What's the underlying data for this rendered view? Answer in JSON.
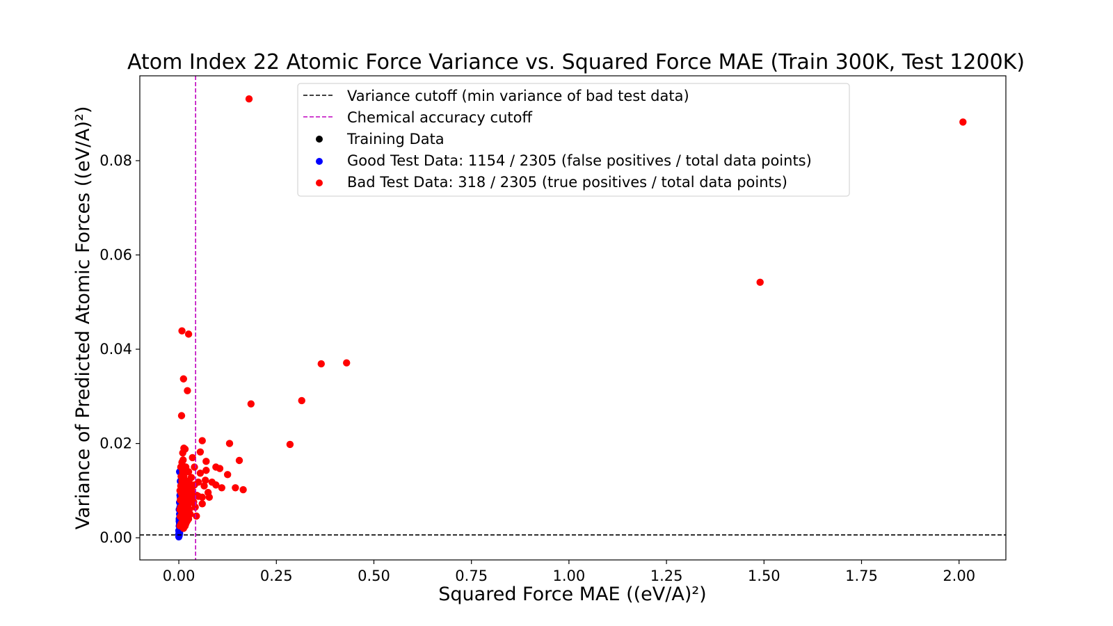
{
  "chart_data": {
    "type": "scatter",
    "title": "Atom Index 22 Atomic Force Variance vs. Squared Force MAE (Train 300K, Test 1200K)",
    "xlabel": "Squared Force MAE ((eV/A)²)",
    "ylabel": "Variance of Predicted Atomic Forces ((eV/A)²)",
    "xlim": [
      -0.1,
      2.12
    ],
    "ylim": [
      -0.0047,
      0.098
    ],
    "xticks": [
      0.0,
      0.25,
      0.5,
      0.75,
      1.0,
      1.25,
      1.5,
      1.75,
      2.0
    ],
    "xtick_labels": [
      "0.00",
      "0.25",
      "0.50",
      "0.75",
      "1.00",
      "1.25",
      "1.50",
      "1.75",
      "2.00"
    ],
    "yticks": [
      0.0,
      0.02,
      0.04,
      0.06,
      0.08
    ],
    "ytick_labels": [
      "0.00",
      "0.02",
      "0.04",
      "0.06",
      "0.08"
    ],
    "grid": false,
    "legend_position": "top-center",
    "reference_lines": [
      {
        "orientation": "horizontal",
        "value": 0.0006,
        "label": "Variance cutoff (min variance of bad test data)",
        "color": "#000000",
        "style": "dashed"
      },
      {
        "orientation": "vertical",
        "value": 0.043,
        "label": "Chemical accuracy cutoff",
        "color": "#bf00bf",
        "style": "dashed"
      }
    ],
    "series": [
      {
        "name": "Training Data",
        "color": "#000000",
        "points": []
      },
      {
        "name": "Good Test Data: 1154 / 2305 (false positives / total data points)",
        "color": "#0000ff",
        "points": [
          [
            0.0,
            0.0002
          ],
          [
            0.001,
            0.0005
          ],
          [
            0.002,
            0.001
          ],
          [
            0.0,
            0.0015
          ],
          [
            0.003,
            0.002
          ],
          [
            0.001,
            0.0025
          ],
          [
            0.002,
            0.003
          ],
          [
            0.004,
            0.0035
          ],
          [
            0.001,
            0.004
          ],
          [
            0.003,
            0.0045
          ],
          [
            0.002,
            0.005
          ],
          [
            0.004,
            0.0055
          ],
          [
            0.001,
            0.006
          ],
          [
            0.003,
            0.0065
          ],
          [
            0.005,
            0.007
          ],
          [
            0.002,
            0.0075
          ],
          [
            0.006,
            0.008
          ],
          [
            0.004,
            0.0085
          ],
          [
            0.003,
            0.009
          ],
          [
            0.007,
            0.0095
          ],
          [
            0.005,
            0.01
          ],
          [
            0.008,
            0.011
          ],
          [
            0.004,
            0.012
          ],
          [
            0.006,
            0.013
          ],
          [
            0.002,
            0.014
          ],
          [
            0.001,
            0.0035
          ],
          [
            0.005,
            0.0045
          ],
          [
            0.0,
            0.0008
          ],
          [
            0.006,
            0.006
          ]
        ]
      },
      {
        "name": "Bad Test Data: 318 / 2305 (true positives / total data points)",
        "color": "#ff0000",
        "points": [
          [
            2.01,
            0.0882
          ],
          [
            1.49,
            0.0542
          ],
          [
            0.18,
            0.0931
          ],
          [
            0.008,
            0.0439
          ],
          [
            0.025,
            0.0432
          ],
          [
            0.43,
            0.0371
          ],
          [
            0.365,
            0.0369
          ],
          [
            0.012,
            0.0337
          ],
          [
            0.022,
            0.0312
          ],
          [
            0.315,
            0.0291
          ],
          [
            0.185,
            0.0284
          ],
          [
            0.007,
            0.0259
          ],
          [
            0.285,
            0.0198
          ],
          [
            0.13,
            0.02
          ],
          [
            0.06,
            0.0206
          ],
          [
            0.155,
            0.0164
          ],
          [
            0.165,
            0.0102
          ],
          [
            0.145,
            0.0106
          ],
          [
            0.125,
            0.0134
          ],
          [
            0.11,
            0.0106
          ],
          [
            0.105,
            0.0147
          ],
          [
            0.095,
            0.015
          ],
          [
            0.095,
            0.0112
          ],
          [
            0.085,
            0.0118
          ],
          [
            0.075,
            0.0096
          ],
          [
            0.078,
            0.0086
          ],
          [
            0.07,
            0.0162
          ],
          [
            0.07,
            0.0143
          ],
          [
            0.068,
            0.0122
          ],
          [
            0.065,
            0.011
          ],
          [
            0.06,
            0.0086
          ],
          [
            0.06,
            0.0072
          ],
          [
            0.055,
            0.0137
          ],
          [
            0.055,
            0.0182
          ],
          [
            0.05,
            0.0118
          ],
          [
            0.045,
            0.0046
          ],
          [
            0.04,
            0.015
          ],
          [
            0.04,
            0.0112
          ],
          [
            0.035,
            0.017
          ],
          [
            0.035,
            0.0095
          ],
          [
            0.038,
            0.0076
          ],
          [
            0.032,
            0.0128
          ],
          [
            0.03,
            0.011
          ],
          [
            0.028,
            0.0086
          ],
          [
            0.027,
            0.006
          ],
          [
            0.025,
            0.014
          ],
          [
            0.025,
            0.004
          ],
          [
            0.022,
            0.012
          ],
          [
            0.022,
            0.008
          ],
          [
            0.02,
            0.01
          ],
          [
            0.02,
            0.006
          ],
          [
            0.018,
            0.015
          ],
          [
            0.018,
            0.003
          ],
          [
            0.016,
            0.0188
          ],
          [
            0.015,
            0.011
          ],
          [
            0.015,
            0.007
          ],
          [
            0.014,
            0.005
          ],
          [
            0.013,
            0.013
          ],
          [
            0.012,
            0.009
          ],
          [
            0.012,
            0.002
          ],
          [
            0.01,
            0.018
          ],
          [
            0.01,
            0.014
          ],
          [
            0.01,
            0.0105
          ],
          [
            0.009,
            0.0075
          ],
          [
            0.009,
            0.004
          ],
          [
            0.008,
            0.016
          ],
          [
            0.008,
            0.012
          ],
          [
            0.008,
            0.0085
          ],
          [
            0.007,
            0.015
          ],
          [
            0.007,
            0.0055
          ],
          [
            0.006,
            0.013
          ],
          [
            0.006,
            0.0095
          ],
          [
            0.006,
            0.003
          ],
          [
            0.005,
            0.011
          ],
          [
            0.005,
            0.0065
          ],
          [
            0.004,
            0.008
          ],
          [
            0.004,
            0.0045
          ],
          [
            0.003,
            0.01
          ],
          [
            0.003,
            0.006
          ],
          [
            0.003,
            0.0025
          ],
          [
            0.011,
            0.0165
          ],
          [
            0.017,
            0.0045
          ],
          [
            0.019,
            0.0115
          ],
          [
            0.021,
            0.0035
          ],
          [
            0.023,
            0.0065
          ],
          [
            0.024,
            0.0095
          ],
          [
            0.026,
            0.012
          ],
          [
            0.029,
            0.005
          ],
          [
            0.031,
            0.0075
          ],
          [
            0.033,
            0.0105
          ],
          [
            0.036,
            0.0085
          ],
          [
            0.042,
            0.0065
          ],
          [
            0.046,
            0.009
          ],
          [
            0.05,
            0.0088
          ],
          [
            0.013,
            0.019
          ],
          [
            0.016,
            0.0025
          ],
          [
            0.014,
            0.0085
          ],
          [
            0.009,
            0.0125
          ],
          [
            0.005,
            0.015
          ]
        ]
      }
    ]
  }
}
